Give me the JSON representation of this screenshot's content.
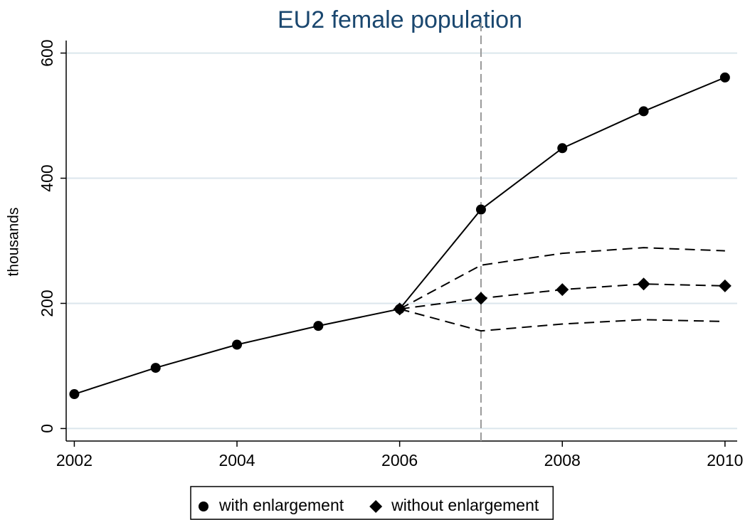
{
  "chart_data": {
    "type": "line",
    "title": "EU2 female population",
    "y_label": "thousands",
    "x": [
      2002,
      2003,
      2004,
      2005,
      2006,
      2007,
      2008,
      2009,
      2010
    ],
    "series": [
      {
        "name": "with enlargement",
        "color": "#000000",
        "marker": "circle",
        "dash": false,
        "values": [
          55,
          97,
          134,
          164,
          191,
          350,
          448,
          507,
          561
        ]
      },
      {
        "name": "without enlargement",
        "color": "#000000",
        "marker": "diamond",
        "dash": true,
        "values": [
          null,
          null,
          null,
          null,
          191,
          208,
          222,
          231,
          228
        ]
      },
      {
        "color": "#000000",
        "marker": null,
        "dash": true,
        "values": [
          null,
          null,
          null,
          null,
          191,
          261,
          280,
          289,
          284
        ]
      },
      {
        "color": "#000000",
        "marker": null,
        "dash": true,
        "values": [
          null,
          null,
          null,
          null,
          191,
          156,
          167,
          174,
          171
        ]
      }
    ],
    "xlim": [
      2001.9,
      2010.15
    ],
    "xticks": [
      2002,
      2004,
      2006,
      2008,
      2010
    ],
    "ylim": [
      -20,
      620
    ],
    "yticks": [
      0,
      200,
      400,
      600
    ],
    "grid": true,
    "grid_color": "#dbe6ec",
    "title_color": "#1a476f",
    "reference_line_x": 2007,
    "reference_line_color": "#999999",
    "legend_position": "bottom"
  }
}
